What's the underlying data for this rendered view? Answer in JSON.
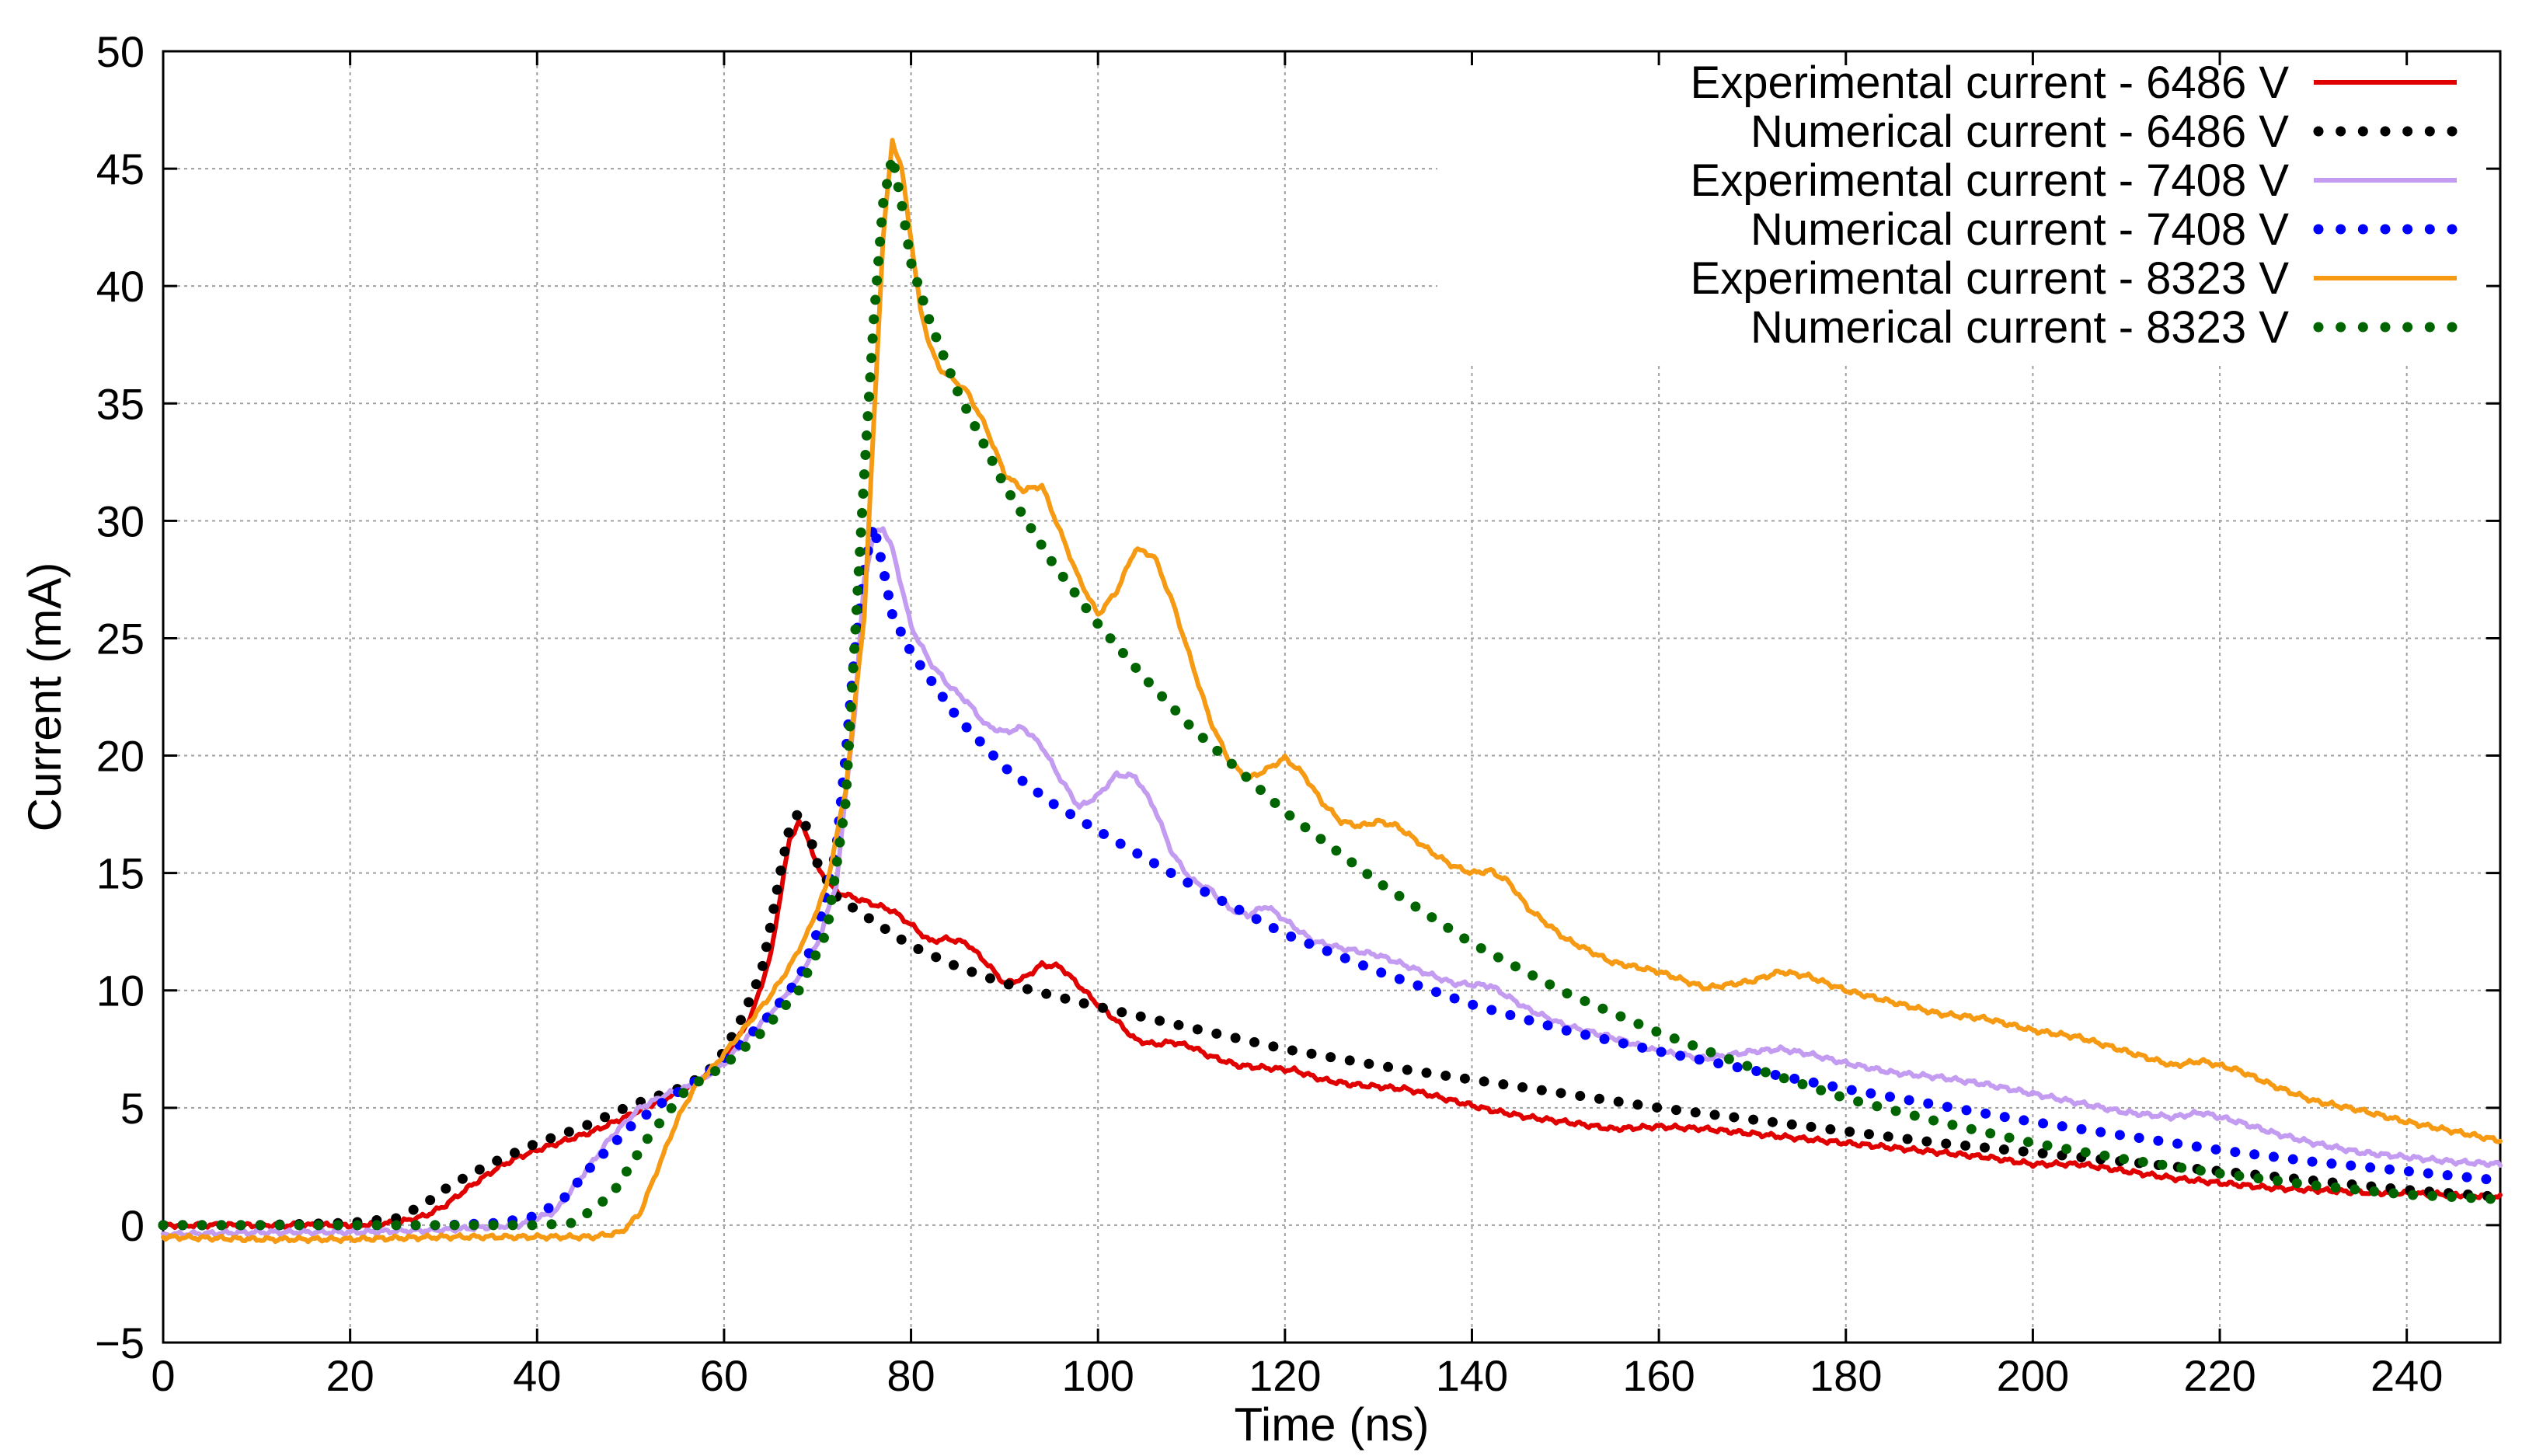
{
  "chart_data": {
    "type": "line",
    "title": "",
    "xlabel": "Time (ns)",
    "ylabel": "Current (mA)",
    "xlim": [
      0,
      250
    ],
    "ylim": [
      -5,
      50
    ],
    "xticks": [
      0,
      20,
      40,
      60,
      80,
      100,
      120,
      140,
      160,
      180,
      200,
      220,
      240
    ],
    "yticks": [
      -5,
      0,
      5,
      10,
      15,
      20,
      25,
      30,
      35,
      40,
      45,
      50
    ],
    "ytick_labels": [
      "−5",
      "0",
      "5",
      "10",
      "15",
      "20",
      "25",
      "30",
      "35",
      "40",
      "45",
      "50"
    ],
    "grid": true,
    "legend_position": "top-right",
    "series": [
      {
        "name": "Experimental current - 6486 V",
        "style": "solid",
        "color": "#e00000",
        "x": [
          0,
          10,
          20,
          25,
          28,
          30,
          33,
          36,
          38,
          40,
          43,
          46,
          50,
          53,
          56,
          59,
          61,
          63,
          65,
          66,
          67,
          68,
          69,
          70,
          72,
          75,
          78,
          80,
          82,
          84,
          86,
          88,
          90,
          92,
          94,
          96,
          98,
          100,
          102,
          104,
          106,
          108,
          110,
          112,
          115,
          118,
          121,
          124,
          127,
          130,
          133,
          136,
          139,
          142,
          146,
          150,
          155,
          160,
          165,
          170,
          175,
          180,
          185,
          190,
          195,
          200,
          205,
          210,
          215,
          220,
          225,
          230,
          235,
          240,
          245,
          250
        ],
        "y": [
          0,
          0,
          0,
          0.1,
          0.4,
          0.8,
          1.7,
          2.5,
          2.9,
          3.2,
          3.6,
          4.0,
          4.7,
          5.3,
          5.8,
          6.6,
          7.6,
          9.0,
          11.5,
          14.0,
          16.4,
          17.2,
          16.5,
          15.2,
          14.2,
          13.8,
          13.4,
          12.8,
          12.1,
          12.2,
          12.0,
          11.2,
          10.3,
          10.5,
          11.1,
          11.0,
          10.2,
          9.4,
          8.7,
          7.9,
          7.7,
          7.8,
          7.6,
          7.2,
          6.8,
          6.7,
          6.6,
          6.2,
          6.0,
          5.9,
          5.8,
          5.5,
          5.2,
          4.9,
          4.6,
          4.4,
          4.1,
          4.2,
          4.1,
          3.9,
          3.7,
          3.5,
          3.3,
          3.1,
          2.9,
          2.6,
          2.6,
          2.3,
          2.0,
          1.8,
          1.6,
          1.5,
          1.4,
          1.35,
          1.3,
          1.2
        ]
      },
      {
        "name": "Numerical current - 6486 V",
        "style": "dotted",
        "color": "#000000",
        "x": [
          0,
          10,
          20,
          25,
          28,
          30,
          33,
          36,
          40,
          45,
          50,
          55,
          58,
          60,
          62,
          64,
          65,
          66,
          67,
          68,
          69,
          70,
          72,
          75,
          80,
          85,
          90,
          95,
          100,
          110,
          120,
          130,
          140,
          150,
          160,
          170,
          180,
          190,
          200,
          210,
          220,
          230,
          240,
          250
        ],
        "y": [
          0,
          0,
          0.1,
          0.3,
          0.9,
          1.5,
          2.2,
          2.8,
          3.5,
          4.2,
          5.1,
          5.8,
          6.4,
          7.4,
          8.9,
          10.8,
          12.8,
          15.0,
          16.9,
          17.6,
          16.8,
          15.4,
          14.0,
          13.2,
          11.9,
          11.0,
          10.3,
          9.8,
          9.3,
          8.4,
          7.5,
          6.8,
          6.2,
          5.6,
          5.0,
          4.5,
          4.0,
          3.5,
          3.1,
          2.7,
          2.3,
          1.9,
          1.5,
          1.2
        ]
      },
      {
        "name": "Experimental current - 7408 V",
        "style": "solid",
        "color": "#c39bf0",
        "x": [
          0,
          10,
          20,
          30,
          38,
          42,
          45,
          48,
          51,
          54,
          57,
          60,
          63,
          66,
          68,
          70,
          72,
          74,
          75,
          76,
          77,
          78,
          79,
          80,
          82,
          84,
          86,
          88,
          90,
          92,
          94,
          96,
          98,
          100,
          102,
          104,
          106,
          108,
          110,
          112,
          114,
          116,
          118,
          120,
          123,
          126,
          130,
          134,
          138,
          142,
          146,
          150,
          155,
          160,
          165,
          170,
          173,
          176,
          180,
          185,
          190,
          195,
          200,
          205,
          210,
          215,
          218,
          222,
          226,
          230,
          235,
          240,
          245,
          250
        ],
        "y": [
          -0.4,
          -0.3,
          -0.3,
          -0.2,
          0.0,
          0.6,
          2.2,
          3.8,
          5.0,
          5.6,
          6.0,
          6.9,
          8.2,
          9.5,
          10.5,
          12.0,
          14.5,
          22.0,
          27.5,
          29.4,
          29.7,
          28.8,
          27.2,
          25.5,
          24.0,
          23.0,
          22.3,
          21.3,
          21.0,
          21.2,
          20.4,
          19.0,
          17.8,
          18.3,
          19.2,
          19.1,
          17.8,
          15.8,
          14.7,
          14.3,
          13.5,
          13.2,
          13.6,
          13.0,
          12.1,
          11.8,
          11.5,
          10.9,
          10.3,
          10.2,
          9.2,
          8.5,
          8.0,
          7.4,
          7.1,
          7.4,
          7.5,
          7.3,
          6.9,
          6.5,
          6.3,
          6.0,
          5.6,
          5.2,
          4.8,
          4.6,
          4.8,
          4.4,
          3.9,
          3.5,
          3.1,
          2.9,
          2.7,
          2.6
        ]
      },
      {
        "name": "Numerical current - 7408 V",
        "style": "dotted",
        "color": "#0000ff",
        "x": [
          0,
          10,
          20,
          30,
          36,
          40,
          43,
          46,
          50,
          54,
          58,
          62,
          65,
          68,
          70,
          72,
          73,
          74,
          75,
          76,
          77,
          78,
          80,
          85,
          90,
          95,
          100,
          110,
          120,
          130,
          140,
          150,
          160,
          170,
          180,
          190,
          200,
          210,
          220,
          230,
          240,
          250
        ],
        "y": [
          0,
          0,
          0,
          0,
          0.1,
          0.4,
          1.2,
          2.6,
          4.2,
          5.4,
          6.4,
          7.8,
          9.0,
          10.5,
          12.5,
          16.0,
          20.0,
          24.5,
          28.0,
          29.8,
          28.0,
          26.0,
          24.4,
          21.6,
          19.5,
          18.0,
          16.8,
          14.5,
          12.4,
          10.8,
          9.4,
          8.3,
          7.4,
          6.6,
          5.8,
          5.1,
          4.4,
          3.8,
          3.2,
          2.7,
          2.3,
          1.9
        ]
      },
      {
        "name": "Experimental current - 8323 V",
        "style": "solid",
        "color": "#f59a12",
        "x": [
          0,
          10,
          20,
          30,
          40,
          46,
          49,
          51,
          53,
          55,
          57,
          59,
          61,
          63,
          65,
          67,
          69,
          71,
          73,
          75,
          76,
          77,
          78,
          79,
          80,
          81,
          82,
          83,
          84,
          86,
          88,
          90,
          92,
          94,
          96,
          98,
          100,
          102,
          104,
          106,
          108,
          110,
          112,
          114,
          116,
          118,
          120,
          122,
          124,
          126,
          128,
          130,
          132,
          134,
          136,
          138,
          140,
          142,
          144,
          146,
          150,
          155,
          160,
          165,
          170,
          173,
          176,
          180,
          185,
          190,
          195,
          200,
          205,
          210,
          215,
          218,
          222,
          226,
          230,
          235,
          240,
          245,
          250
        ],
        "y": [
          -0.5,
          -0.6,
          -0.6,
          -0.5,
          -0.5,
          -0.5,
          -0.3,
          0.5,
          2.5,
          4.5,
          6.0,
          6.8,
          7.8,
          8.8,
          9.8,
          11.0,
          12.5,
          14.5,
          18.5,
          26.0,
          34.0,
          42.0,
          46.2,
          45.0,
          42.0,
          39.0,
          37.5,
          36.5,
          36.2,
          35.5,
          34.0,
          32.0,
          31.3,
          31.5,
          29.5,
          27.5,
          26.0,
          27.0,
          28.8,
          28.5,
          26.5,
          24.0,
          21.5,
          19.8,
          19.0,
          19.4,
          19.9,
          19.2,
          18.0,
          17.2,
          17.0,
          17.2,
          17.0,
          16.4,
          15.8,
          15.3,
          15.0,
          15.1,
          14.6,
          13.5,
          12.2,
          11.2,
          10.8,
          10.1,
          10.4,
          10.8,
          10.6,
          10.0,
          9.5,
          9.0,
          8.8,
          8.3,
          8.0,
          7.4,
          6.8,
          7.0,
          6.6,
          5.9,
          5.3,
          4.9,
          4.4,
          4.0,
          3.6
        ]
      },
      {
        "name": "Numerical current - 8323 V",
        "style": "dotted",
        "color": "#006400",
        "x": [
          0,
          10,
          20,
          30,
          40,
          44,
          48,
          52,
          56,
          60,
          64,
          68,
          71,
          73,
          74,
          75,
          76,
          77,
          78,
          79,
          80,
          82,
          85,
          90,
          95,
          100,
          105,
          110,
          115,
          120,
          130,
          140,
          150,
          160,
          170,
          180,
          190,
          200,
          210,
          220,
          230,
          240,
          250
        ],
        "y": [
          0,
          0,
          0,
          0,
          0,
          0.1,
          1.3,
          3.8,
          5.8,
          6.8,
          8.2,
          10.0,
          12.5,
          18.0,
          25.0,
          32.0,
          38.5,
          43.5,
          45.5,
          43.5,
          41.0,
          38.5,
          35.5,
          31.5,
          28.3,
          25.6,
          23.3,
          21.2,
          19.4,
          17.6,
          14.6,
          12.0,
          9.9,
          8.2,
          6.7,
          5.4,
          4.4,
          3.5,
          2.8,
          2.2,
          1.7,
          1.3,
          1.1
        ]
      }
    ]
  }
}
